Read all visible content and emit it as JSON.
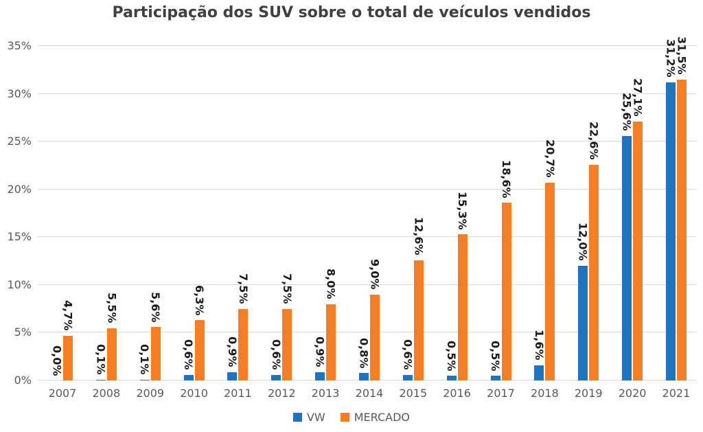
{
  "chart_data": {
    "type": "bar",
    "title": "Participação dos SUV sobre o total de veículos vendidos",
    "categories": [
      "2007",
      "2008",
      "2009",
      "2010",
      "2011",
      "2012",
      "2013",
      "2014",
      "2015",
      "2016",
      "2017",
      "2018",
      "2019",
      "2020",
      "2021"
    ],
    "series": [
      {
        "name": "VW",
        "color": "#1d73c4",
        "values": [
          0.0,
          0.1,
          0.1,
          0.6,
          0.9,
          0.6,
          0.9,
          0.8,
          0.6,
          0.5,
          0.5,
          1.6,
          12.0,
          25.6,
          31.2
        ],
        "labels": [
          "0,0%",
          "0,1%",
          "0,1%",
          "0,6%",
          "0,9%",
          "0,6%",
          "0,9%",
          "0,8%",
          "0,6%",
          "0,5%",
          "0,5%",
          "1,6%",
          "12,0%",
          "25,6%",
          "31,2%"
        ]
      },
      {
        "name": "MERCADO",
        "color": "#f87e21",
        "values": [
          4.7,
          5.5,
          5.6,
          6.3,
          7.5,
          7.5,
          8.0,
          9.0,
          12.6,
          15.3,
          18.6,
          20.7,
          22.6,
          27.1,
          31.5
        ],
        "labels": [
          "4,7%",
          "5,5%",
          "5,6%",
          "6,3%",
          "7,5%",
          "7,5%",
          "8,0%",
          "9,0%",
          "12,6%",
          "15,3%",
          "18,6%",
          "20,7%",
          "22,6%",
          "27,1%",
          "31,5%"
        ]
      }
    ],
    "y_axis": {
      "ticks": [
        "0%",
        "5%",
        "10%",
        "15%",
        "20%",
        "25%",
        "30%",
        "35%"
      ],
      "min": 0,
      "max": 35,
      "step": 5
    },
    "grid": true,
    "legend_position": "bottom",
    "data_labels_rotation_deg": 90,
    "colors": {
      "title_text": "#404040",
      "axis_text": "#595959",
      "gridline": "#d9d9d9",
      "data_label_text": "#1a1a1a",
      "background": "#ffffff"
    }
  }
}
